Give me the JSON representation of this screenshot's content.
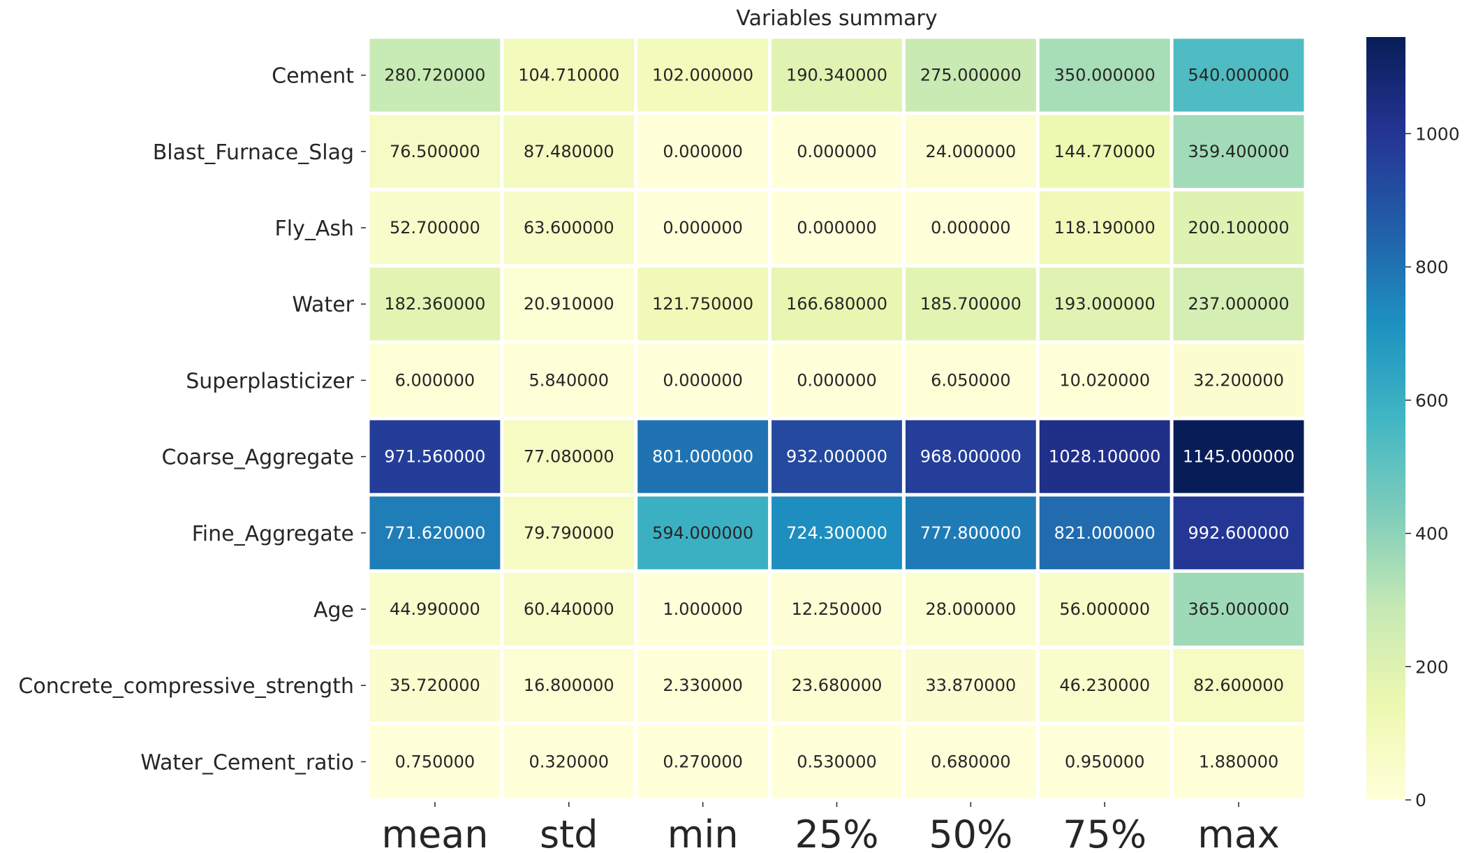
{
  "chart_data": {
    "type": "heatmap",
    "title": "Variables summary",
    "rows": [
      "Cement",
      "Blast_Furnace_Slag",
      "Fly_Ash",
      "Water",
      "Superplasticizer",
      "Coarse_Aggregate",
      "Fine_Aggregate",
      "Age",
      "Concrete_compressive_strength",
      "Water_Cement_ratio"
    ],
    "columns": [
      "mean",
      "std",
      "min",
      "25%",
      "50%",
      "75%",
      "max"
    ],
    "values": [
      [
        280.72,
        104.71,
        102.0,
        190.34,
        275.0,
        350.0,
        540.0
      ],
      [
        76.5,
        87.48,
        0.0,
        0.0,
        24.0,
        144.77,
        359.4
      ],
      [
        52.7,
        63.6,
        0.0,
        0.0,
        0.0,
        118.19,
        200.1
      ],
      [
        182.36,
        20.91,
        121.75,
        166.68,
        185.7,
        193.0,
        237.0
      ],
      [
        6.0,
        5.84,
        0.0,
        0.0,
        6.05,
        10.02,
        32.2
      ],
      [
        971.56,
        77.08,
        801.0,
        932.0,
        968.0,
        1028.1,
        1145.0
      ],
      [
        771.62,
        79.79,
        594.0,
        724.3,
        777.8,
        821.0,
        992.6
      ],
      [
        44.99,
        60.44,
        1.0,
        12.25,
        28.0,
        56.0,
        365.0
      ],
      [
        35.72,
        16.8,
        2.33,
        23.68,
        33.87,
        46.23,
        82.6
      ],
      [
        0.75,
        0.32,
        0.27,
        0.53,
        0.68,
        0.95,
        1.88
      ]
    ],
    "value_format_decimals": 6,
    "colormap": "YlGnBu",
    "colormap_stops": [
      "#ffffd9",
      "#edf8b1",
      "#c7e9b4",
      "#7fcdbb",
      "#41b6c4",
      "#1d91c0",
      "#225ea8",
      "#253494",
      "#081d58"
    ],
    "vmin": 0,
    "vmax": 1145,
    "colorbar_ticks": [
      0,
      200,
      400,
      600,
      800,
      1000
    ],
    "cell_gap_color": "#ffffff",
    "legend_placement": "right"
  }
}
